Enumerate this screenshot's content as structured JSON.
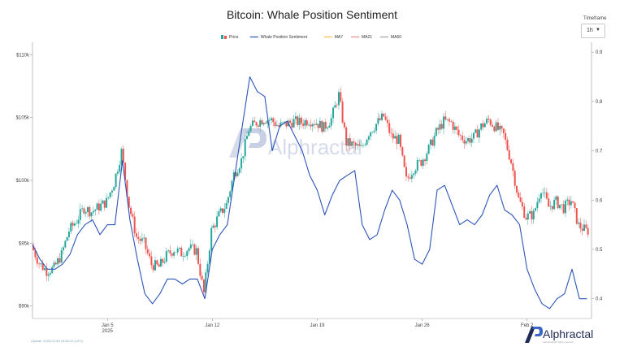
{
  "title": "Bitcoin: Whale Position Sentiment",
  "timeframe": {
    "label": "Timeframe",
    "value": "1h"
  },
  "footer": {
    "update": "Update: 2025-02-06 15:06:12 (UTC)"
  },
  "brand": {
    "name": "Alphractal",
    "sub": "Alphractal All rights reserved",
    "watermark": "Alphractal",
    "color": "#1f2a56"
  },
  "chart_data": {
    "type": "line",
    "title": "Bitcoin: Whale Position Sentiment",
    "legend": [
      {
        "name": "Price",
        "color": "#26a69a"
      },
      {
        "name": "Whale Position Sentiment",
        "color": "#2c54b8"
      },
      {
        "name": "MA7",
        "color": "#f0c040"
      },
      {
        "name": "MA21",
        "color": "#ef8a8a"
      },
      {
        "name": "MA50",
        "color": "#9aa0b8"
      }
    ],
    "legend_placement": "top-center",
    "grid": false,
    "x_ticks": [
      {
        "day": 5,
        "label": "Jan 5",
        "sub": "2025"
      },
      {
        "day": 12,
        "label": "Jan 12",
        "sub": ""
      },
      {
        "day": 19,
        "label": "Jan 19",
        "sub": ""
      },
      {
        "day": 26,
        "label": "Jan 26",
        "sub": ""
      },
      {
        "day": 33,
        "label": "Feb 2",
        "sub": ""
      }
    ],
    "xlim_days": [
      0,
      37.3
    ],
    "y_left": {
      "label": "Price",
      "ticks": [
        {
          "value": 90000,
          "label": "$90k"
        },
        {
          "value": 95000,
          "label": "$95k"
        },
        {
          "value": 100000,
          "label": "$100k"
        },
        {
          "value": 105000,
          "label": "$105k"
        },
        {
          "value": 110000,
          "label": "$110k"
        }
      ],
      "ylim": [
        89000,
        111000
      ]
    },
    "y_right": {
      "label": "Whale Position Sentiment",
      "ticks": [
        {
          "value": 0.4,
          "label": "0.4"
        },
        {
          "value": 0.5,
          "label": "0.5"
        },
        {
          "value": 0.6,
          "label": "0.6"
        },
        {
          "value": 0.7,
          "label": "0.7"
        },
        {
          "value": 0.8,
          "label": "0.8"
        },
        {
          "value": 0.9,
          "label": "0.9"
        }
      ],
      "ylim": [
        0.36,
        0.92
      ]
    },
    "price_series": {
      "name": "Price",
      "up_color": "#26a69a",
      "down_color": "#ef5350",
      "x_days": [
        0,
        0.5,
        1,
        1.5,
        2,
        2.5,
        3,
        3.5,
        4,
        4.5,
        5,
        5.5,
        6,
        6.5,
        7,
        7.5,
        8,
        8.5,
        9,
        9.5,
        10,
        10.5,
        11,
        11.5,
        12,
        12.5,
        13,
        13.5,
        14,
        14.5,
        15,
        15.5,
        16,
        16.5,
        17,
        17.5,
        18,
        18.5,
        19,
        19.5,
        20,
        20.5,
        21,
        21.5,
        22,
        22.5,
        23,
        23.5,
        24,
        24.5,
        25,
        25.5,
        26,
        26.5,
        27,
        27.5,
        28,
        28.5,
        29,
        29.5,
        30,
        30.5,
        31,
        31.5,
        32,
        32.5,
        33,
        33.5,
        34,
        34.5,
        35,
        35.5,
        36,
        36.5,
        37
      ],
      "values": [
        94800,
        93400,
        92800,
        93000,
        94100,
        96000,
        96800,
        97800,
        97500,
        97900,
        98300,
        99800,
        102300,
        98000,
        95500,
        95000,
        93300,
        93100,
        94000,
        94500,
        94200,
        94600,
        94400,
        91000,
        96000,
        97200,
        98100,
        100500,
        101600,
        104100,
        104600,
        104900,
        104800,
        104300,
        104500,
        104700,
        104600,
        104800,
        104600,
        104200,
        104900,
        106800,
        103000,
        102800,
        102500,
        103800,
        104500,
        105100,
        103500,
        103200,
        100000,
        101000,
        101500,
        102500,
        103800,
        104700,
        104600,
        103600,
        103200,
        103400,
        104300,
        104800,
        104200,
        103600,
        101500,
        98500,
        97100,
        97300,
        99400,
        97900,
        98300,
        97800,
        98400,
        96400,
        96000
      ]
    },
    "sentiment_series": {
      "name": "Whale Position Sentiment",
      "color": "#2c54b8",
      "x_days": [
        0,
        0.5,
        1,
        1.5,
        2,
        2.5,
        3,
        3.5,
        4,
        4.5,
        5,
        5.5,
        6,
        6.5,
        7,
        7.5,
        8,
        8.5,
        9,
        9.5,
        10,
        10.5,
        11,
        11.5,
        12,
        12.5,
        13,
        13.5,
        14,
        14.5,
        15,
        15.5,
        16,
        16.5,
        17,
        17.5,
        18,
        18.5,
        19,
        19.5,
        20,
        20.5,
        21,
        21.5,
        22,
        22.5,
        23,
        23.5,
        24,
        24.5,
        25,
        25.5,
        26,
        26.5,
        27,
        27.5,
        28,
        28.5,
        29,
        29.5,
        30,
        30.5,
        31,
        31.5,
        32,
        32.5,
        33,
        33.5,
        34,
        34.5,
        35,
        35.5,
        36,
        36.5,
        37
      ],
      "values": [
        0.51,
        0.48,
        0.46,
        0.46,
        0.47,
        0.49,
        0.53,
        0.55,
        0.56,
        0.53,
        0.55,
        0.55,
        0.68,
        0.56,
        0.48,
        0.41,
        0.39,
        0.41,
        0.44,
        0.44,
        0.43,
        0.44,
        0.44,
        0.4,
        0.5,
        0.53,
        0.55,
        0.65,
        0.75,
        0.85,
        0.82,
        0.81,
        0.7,
        0.75,
        0.76,
        0.73,
        0.7,
        0.65,
        0.62,
        0.57,
        0.61,
        0.64,
        0.65,
        0.66,
        0.55,
        0.52,
        0.53,
        0.58,
        0.62,
        0.6,
        0.55,
        0.48,
        0.47,
        0.5,
        0.62,
        0.63,
        0.59,
        0.55,
        0.56,
        0.55,
        0.57,
        0.61,
        0.63,
        0.58,
        0.57,
        0.55,
        0.46,
        0.42,
        0.39,
        0.38,
        0.4,
        0.41,
        0.46,
        0.4,
        0.4
      ]
    }
  }
}
